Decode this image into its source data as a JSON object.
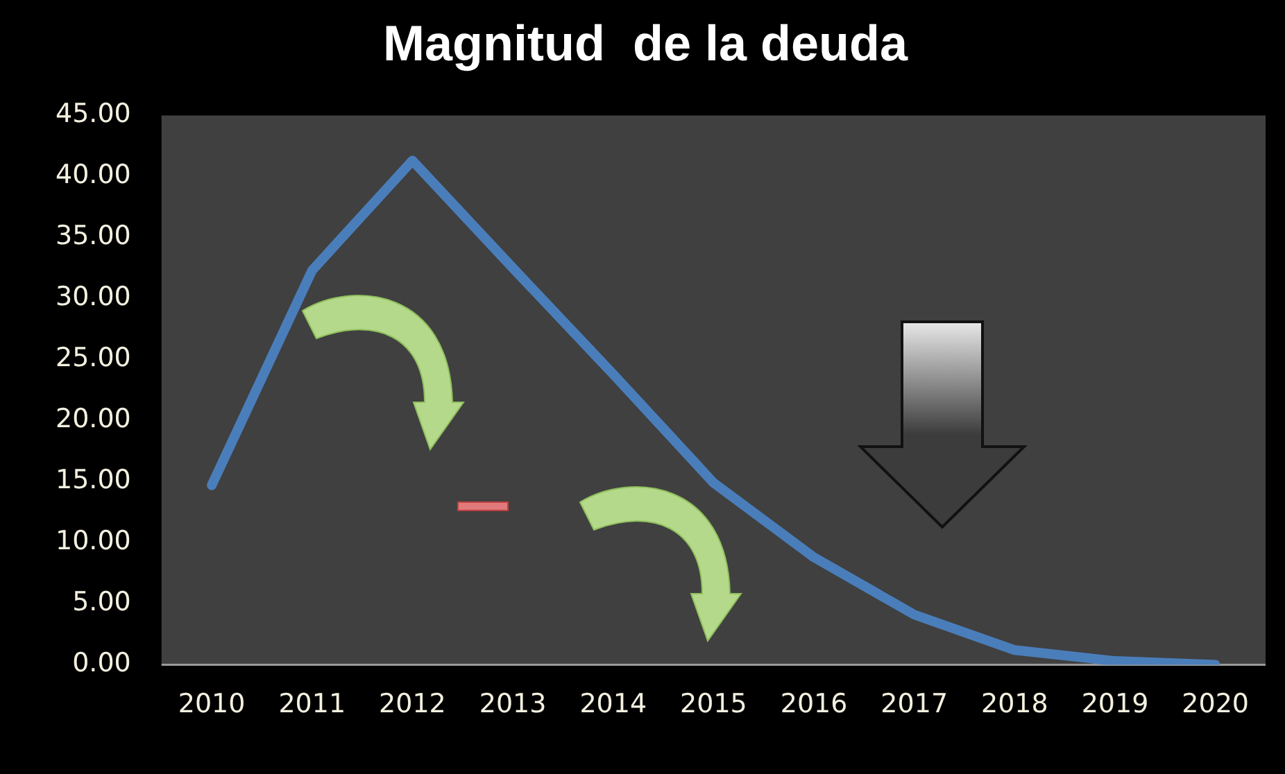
{
  "chart_data": {
    "type": "line",
    "title": "Magnitud  de la deuda",
    "categories": [
      "2010",
      "2011",
      "2012",
      "2013",
      "2014",
      "2015",
      "2016",
      "2017",
      "2018",
      "2019",
      "2020"
    ],
    "series": [
      {
        "color": "#4a7ebb",
        "values": [
          14.7,
          32.3,
          41.3,
          32.5,
          23.8,
          14.9,
          8.8,
          4.1,
          1.2,
          0.3,
          0
        ]
      }
    ],
    "ylim": [
      0,
      45
    ],
    "yticks": [
      {
        "value": 0,
        "label": "0.00"
      },
      {
        "value": 5,
        "label": "5.00"
      },
      {
        "value": 10,
        "label": "10.00"
      },
      {
        "value": 15,
        "label": "15.00"
      },
      {
        "value": 20,
        "label": "20.00"
      },
      {
        "value": 25,
        "label": "25.00"
      },
      {
        "value": 30,
        "label": "30.00"
      },
      {
        "value": 35,
        "label": "35.00"
      },
      {
        "value": 40,
        "label": "40.00"
      },
      {
        "value": 45,
        "label": "45.00"
      }
    ],
    "grid": false,
    "legend": false,
    "marker": "none",
    "line_style": "solid"
  }
}
